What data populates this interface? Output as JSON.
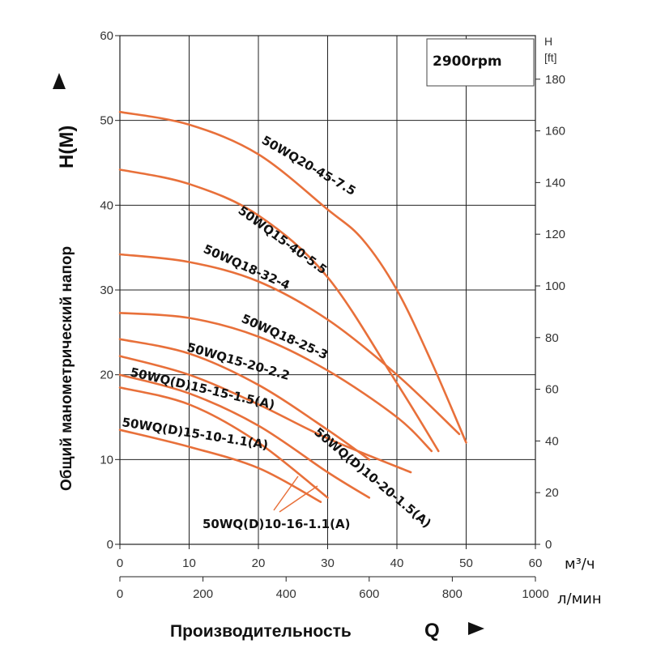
{
  "chart_data": {
    "type": "line",
    "speed_label": "2900rpm",
    "ylabel": "Общий манометрический напор",
    "ylabel_unit": "H(M)",
    "xlabel": "Производительность",
    "xlabel_symbol": "Q",
    "x_unit": "м³/ч",
    "x_unit_secondary": "л/мин",
    "y2_label": "H",
    "y2_unit": "[ft]",
    "xlim": [
      0,
      60
    ],
    "ylim": [
      0,
      60
    ],
    "x_ticks": [
      "0",
      "10",
      "20",
      "30",
      "40",
      "50",
      "60"
    ],
    "x2_ticks": [
      "0",
      "200",
      "400",
      "600",
      "800",
      "1000"
    ],
    "y_ticks": [
      "0",
      "10",
      "20",
      "30",
      "40",
      "50",
      "60"
    ],
    "y2_ticks": [
      "0",
      "20",
      "40",
      "60",
      "80",
      "100",
      "120",
      "140",
      "160",
      "180"
    ],
    "grid": true,
    "line_color": "#e8703a",
    "series": [
      {
        "name": "50WQ20-45-7.5",
        "x": [
          0,
          10,
          20,
          30,
          35,
          40,
          45,
          50
        ],
        "y": [
          51,
          49.5,
          46,
          39.5,
          36,
          30,
          21.5,
          12
        ]
      },
      {
        "name": "50WQ15-40-5.5",
        "x": [
          0,
          10,
          20,
          30,
          40,
          46
        ],
        "y": [
          44.2,
          42.5,
          38.8,
          31.5,
          19,
          11
        ]
      },
      {
        "name": "50WQ18-32-4",
        "x": [
          0,
          10,
          20,
          30,
          40,
          49
        ],
        "y": [
          34.2,
          33.3,
          31,
          26.5,
          20,
          13
        ]
      },
      {
        "name": "50WQ18-25-3",
        "x": [
          0,
          10,
          20,
          30,
          40,
          45
        ],
        "y": [
          27.3,
          26.7,
          24.5,
          20.5,
          15,
          11
        ]
      },
      {
        "name": "50WQ15-20-2.2",
        "x": [
          0,
          10,
          20,
          30,
          36
        ],
        "y": [
          24.2,
          22.5,
          18.8,
          13.5,
          10
        ]
      },
      {
        "name": "50WQ(D)10-20-1.5(A)",
        "x": [
          0,
          10,
          20,
          30,
          42
        ],
        "y": [
          22.2,
          20,
          16.5,
          12.5,
          8.5
        ]
      },
      {
        "name": "50WQ(D)15-15-1.5(A)",
        "x": [
          0,
          10,
          20,
          30,
          36
        ],
        "y": [
          20,
          17.8,
          14,
          8.5,
          5.5
        ]
      },
      {
        "name": "50WQ(D)10-16-1.1(A)",
        "x": [
          0,
          10,
          20,
          30
        ],
        "y": [
          18.5,
          16.5,
          12,
          5.5
        ]
      },
      {
        "name": "50WQ(D)15-10-1.1(A)",
        "x": [
          0,
          10,
          20,
          29
        ],
        "y": [
          13.5,
          11.5,
          9,
          5
        ]
      }
    ]
  }
}
